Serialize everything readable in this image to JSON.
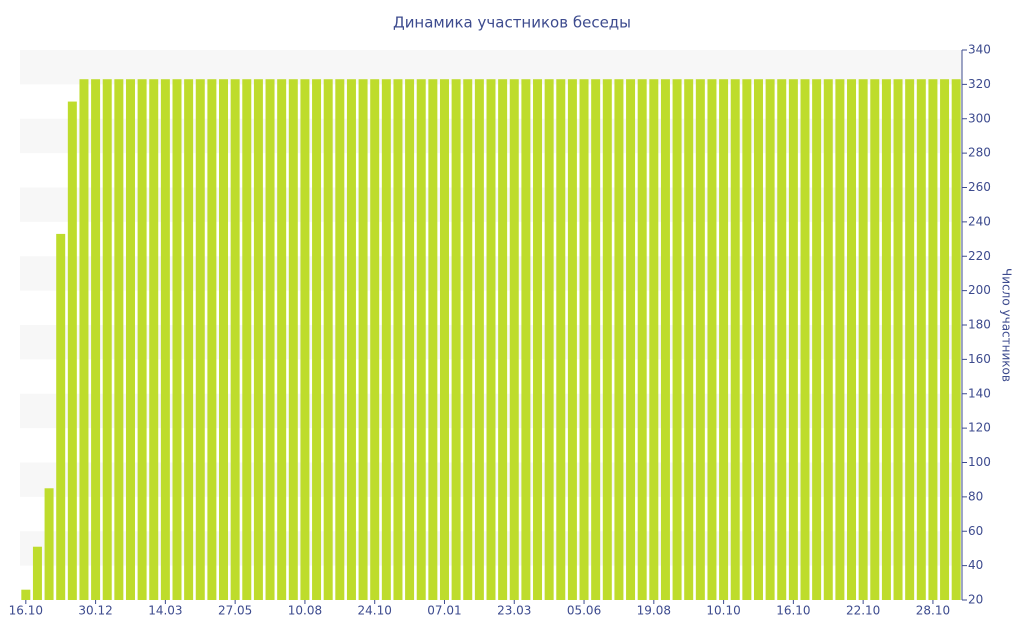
{
  "chart_data": {
    "type": "bar",
    "title": "Динамика участников беседы",
    "y_axis_label": "Число участников",
    "y_axis_side": "right",
    "categories": [
      "16.10",
      null,
      null,
      null,
      null,
      null,
      "30.12",
      null,
      null,
      null,
      null,
      null,
      "14.03",
      null,
      null,
      null,
      null,
      null,
      "27.05",
      null,
      null,
      null,
      null,
      null,
      "10.08",
      null,
      null,
      null,
      null,
      null,
      "24.10",
      null,
      null,
      null,
      null,
      null,
      "07.01",
      null,
      null,
      null,
      null,
      null,
      "23.03",
      null,
      null,
      null,
      null,
      null,
      "05.06",
      null,
      null,
      null,
      null,
      null,
      "19.08",
      null,
      null,
      null,
      null,
      null,
      "10.10",
      null,
      null,
      null,
      null,
      null,
      "16.10",
      null,
      null,
      null,
      null,
      null,
      "22.10",
      null,
      null,
      null,
      null,
      null,
      "28.10",
      null,
      null
    ],
    "values": [
      26,
      51,
      85,
      233,
      310,
      323,
      323,
      323,
      323,
      323,
      323,
      323,
      323,
      323,
      323,
      323,
      323,
      323,
      323,
      323,
      323,
      323,
      323,
      323,
      323,
      323,
      323,
      323,
      323,
      323,
      323,
      323,
      323,
      323,
      323,
      323,
      323,
      323,
      323,
      323,
      323,
      323,
      323,
      323,
      323,
      323,
      323,
      323,
      323,
      323,
      323,
      323,
      323,
      323,
      323,
      323,
      323,
      323,
      323,
      323,
      323,
      323,
      323,
      323,
      323,
      323,
      323,
      323,
      323,
      323,
      323,
      323,
      323,
      323,
      323,
      323,
      323,
      323,
      323,
      323,
      323
    ],
    "color": "#bedc2c",
    "ylim": [
      20,
      340
    ],
    "yticks": [
      20,
      40,
      60,
      80,
      100,
      120,
      140,
      160,
      180,
      200,
      220,
      240,
      260,
      280,
      300,
      320,
      340
    ],
    "grid": true
  }
}
